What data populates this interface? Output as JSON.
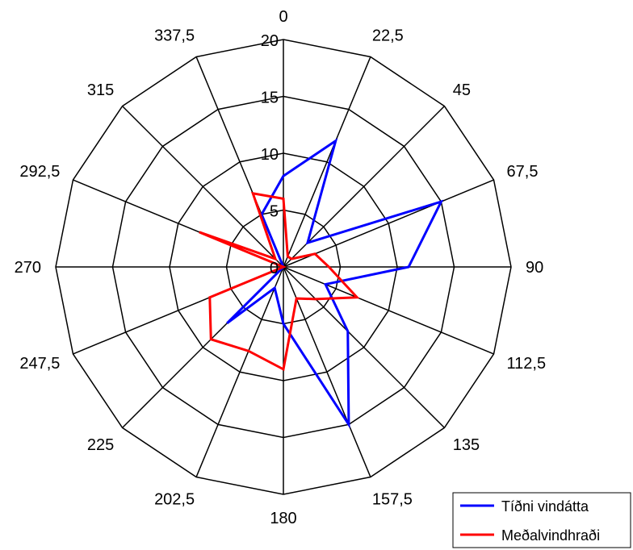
{
  "chart_data": {
    "type": "radar",
    "title": "",
    "directions": [
      "0",
      "22,5",
      "45",
      "67,5",
      "90",
      "112,5",
      "135",
      "157,5",
      "180",
      "202,5",
      "225",
      "247,5",
      "270",
      "292,5",
      "315",
      "337,5"
    ],
    "ring_labels": [
      "0",
      "5",
      "10",
      "15",
      "20"
    ],
    "rlim": [
      0,
      20
    ],
    "grid": true,
    "legend_position": "bottom-right",
    "series": [
      {
        "name": "Tíðni vindátta",
        "color": "#0000ff",
        "values": [
          8,
          12,
          3,
          15,
          11,
          4,
          8,
          15,
          5,
          2,
          7,
          0,
          0,
          0,
          0,
          5
        ]
      },
      {
        "name": "Meðalvindhraði",
        "color": "#ff0000",
        "values": [
          6,
          1,
          1,
          3,
          4,
          7,
          4,
          3,
          9,
          8,
          9,
          7,
          0,
          8,
          1,
          7
        ]
      }
    ]
  }
}
